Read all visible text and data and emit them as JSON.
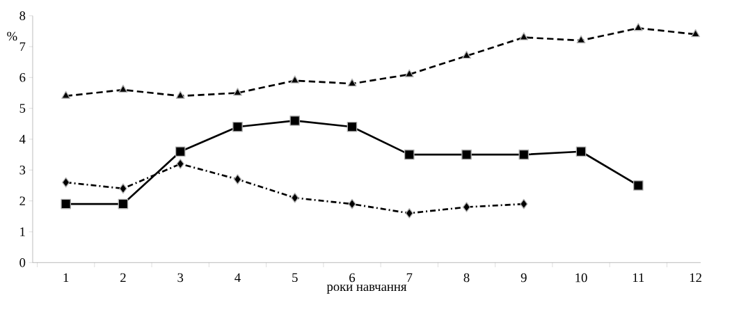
{
  "chart_data": {
    "type": "line",
    "xlabel": "роки навчання",
    "ylabel": "%",
    "categories": [
      "1",
      "2",
      "3",
      "4",
      "5",
      "6",
      "7",
      "8",
      "9",
      "10",
      "11",
      "12"
    ],
    "series": [
      {
        "color": "#000000",
        "marker": "triangle",
        "line_style": "dashed",
        "values": [
          5.4,
          5.6,
          5.4,
          5.5,
          5.9,
          5.8,
          6.1,
          6.7,
          7.3,
          7.2,
          7.6,
          7.4
        ]
      },
      {
        "color": "#000000",
        "marker": "square",
        "line_style": "solid",
        "values": [
          1.9,
          1.9,
          3.6,
          4.4,
          4.6,
          4.4,
          3.5,
          3.5,
          3.5,
          3.6,
          2.5,
          null
        ]
      },
      {
        "color": "#000000",
        "marker": "diamond",
        "line_style": "dashdotted",
        "values": [
          2.6,
          2.4,
          3.2,
          2.7,
          2.1,
          1.9,
          1.6,
          1.8,
          1.9,
          null,
          null,
          null
        ]
      }
    ],
    "ylim": [
      0,
      8
    ],
    "yticks": [
      0,
      1,
      2,
      3,
      4,
      5,
      6,
      7,
      8
    ],
    "grid": false
  }
}
